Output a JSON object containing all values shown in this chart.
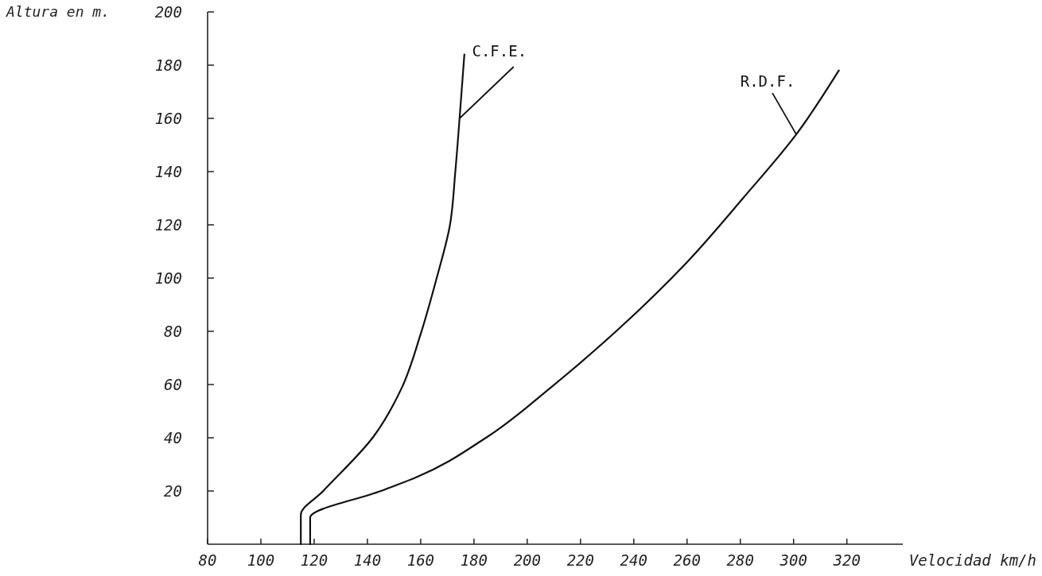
{
  "chart_data": {
    "type": "line",
    "xlabel": "Velocidad km/h",
    "ylabel": "Altura en m.",
    "xlim": [
      80,
      341
    ],
    "xticks": [
      80,
      100,
      120,
      140,
      160,
      180,
      200,
      220,
      240,
      260,
      280,
      300,
      320
    ],
    "ylim": [
      0,
      200
    ],
    "yticks": [
      20,
      40,
      60,
      80,
      100,
      120,
      140,
      160,
      180,
      200
    ],
    "grid": false,
    "legend": false,
    "marker": "none",
    "line_style": "solid",
    "series": [
      {
        "name": "C.F.E.",
        "color": "#111111",
        "x": [
          115,
          115,
          123.4,
          142.4,
          153,
          160,
          166,
          171,
          173,
          174.6,
          176.4
        ],
        "values": [
          0,
          11,
          20,
          40.6,
          59,
          79,
          100,
          120,
          140,
          160,
          184
        ]
      },
      {
        "name": "R.D.F.",
        "color": "#111111",
        "x": [
          118.5,
          118.5,
          145,
          158,
          184.5,
          209,
          234,
          260,
          281,
          301,
          317
        ],
        "values": [
          0,
          10,
          20,
          25,
          40,
          59,
          80.6,
          106,
          130,
          154,
          178
        ]
      }
    ]
  }
}
